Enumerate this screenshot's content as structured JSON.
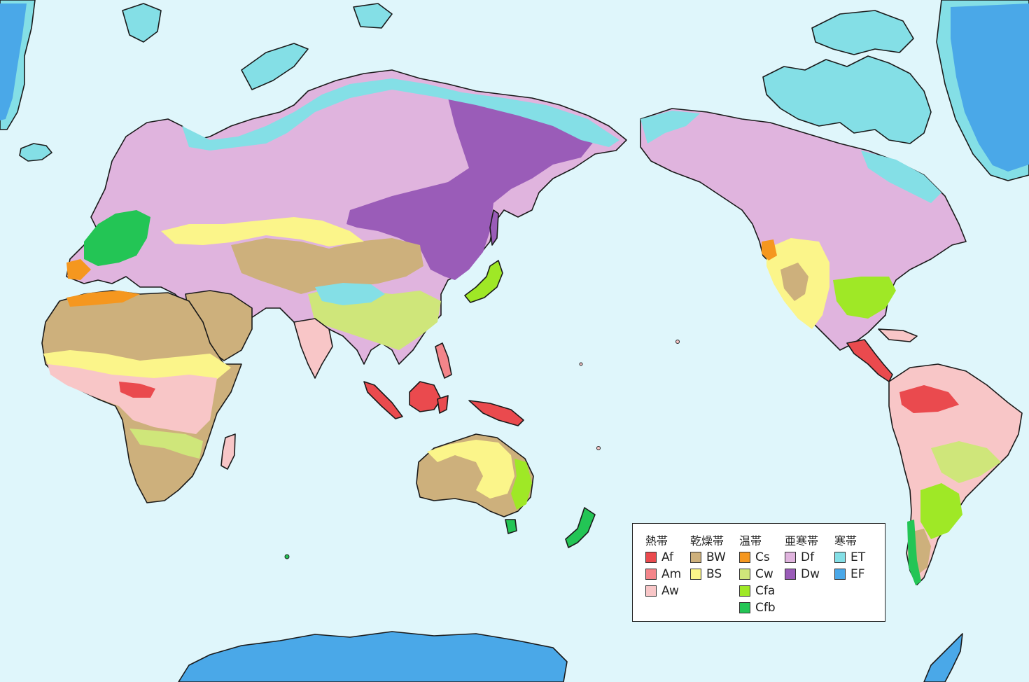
{
  "map": {
    "colors": {
      "ocean": "#dff6fb",
      "Af": "#ea4a4e",
      "Am": "#f3858a",
      "Aw": "#f8c6c7",
      "BW": "#cdb07c",
      "BS": "#fbf58a",
      "Cs": "#f5971f",
      "Cw": "#cfe67a",
      "Cfa": "#9fe826",
      "Cfb": "#23c555",
      "Df": "#e0b4de",
      "Dw": "#9a5cb8",
      "ET": "#84dfe6",
      "EF": "#4aa8e8"
    },
    "legend": {
      "groups": [
        {
          "title": "熱帯",
          "items": [
            {
              "code": "Af",
              "color": "#ea4a4e"
            },
            {
              "code": "Am",
              "color": "#f3858a"
            },
            {
              "code": "Aw",
              "color": "#f8c6c7"
            }
          ]
        },
        {
          "title": "乾燥帯",
          "items": [
            {
              "code": "BW",
              "color": "#cdb07c"
            },
            {
              "code": "BS",
              "color": "#fbf58a"
            }
          ]
        },
        {
          "title": "温帯",
          "items": [
            {
              "code": "Cs",
              "color": "#f5971f"
            },
            {
              "code": "Cw",
              "color": "#cfe67a"
            },
            {
              "code": "Cfa",
              "color": "#9fe826"
            },
            {
              "code": "Cfb",
              "color": "#23c555"
            }
          ]
        },
        {
          "title": "亜寒帯",
          "items": [
            {
              "code": "Df",
              "color": "#e0b4de"
            },
            {
              "code": "Dw",
              "color": "#9a5cb8"
            }
          ]
        },
        {
          "title": "寒帯",
          "items": [
            {
              "code": "ET",
              "color": "#84dfe6"
            },
            {
              "code": "EF",
              "color": "#4aa8e8"
            }
          ]
        }
      ]
    }
  }
}
